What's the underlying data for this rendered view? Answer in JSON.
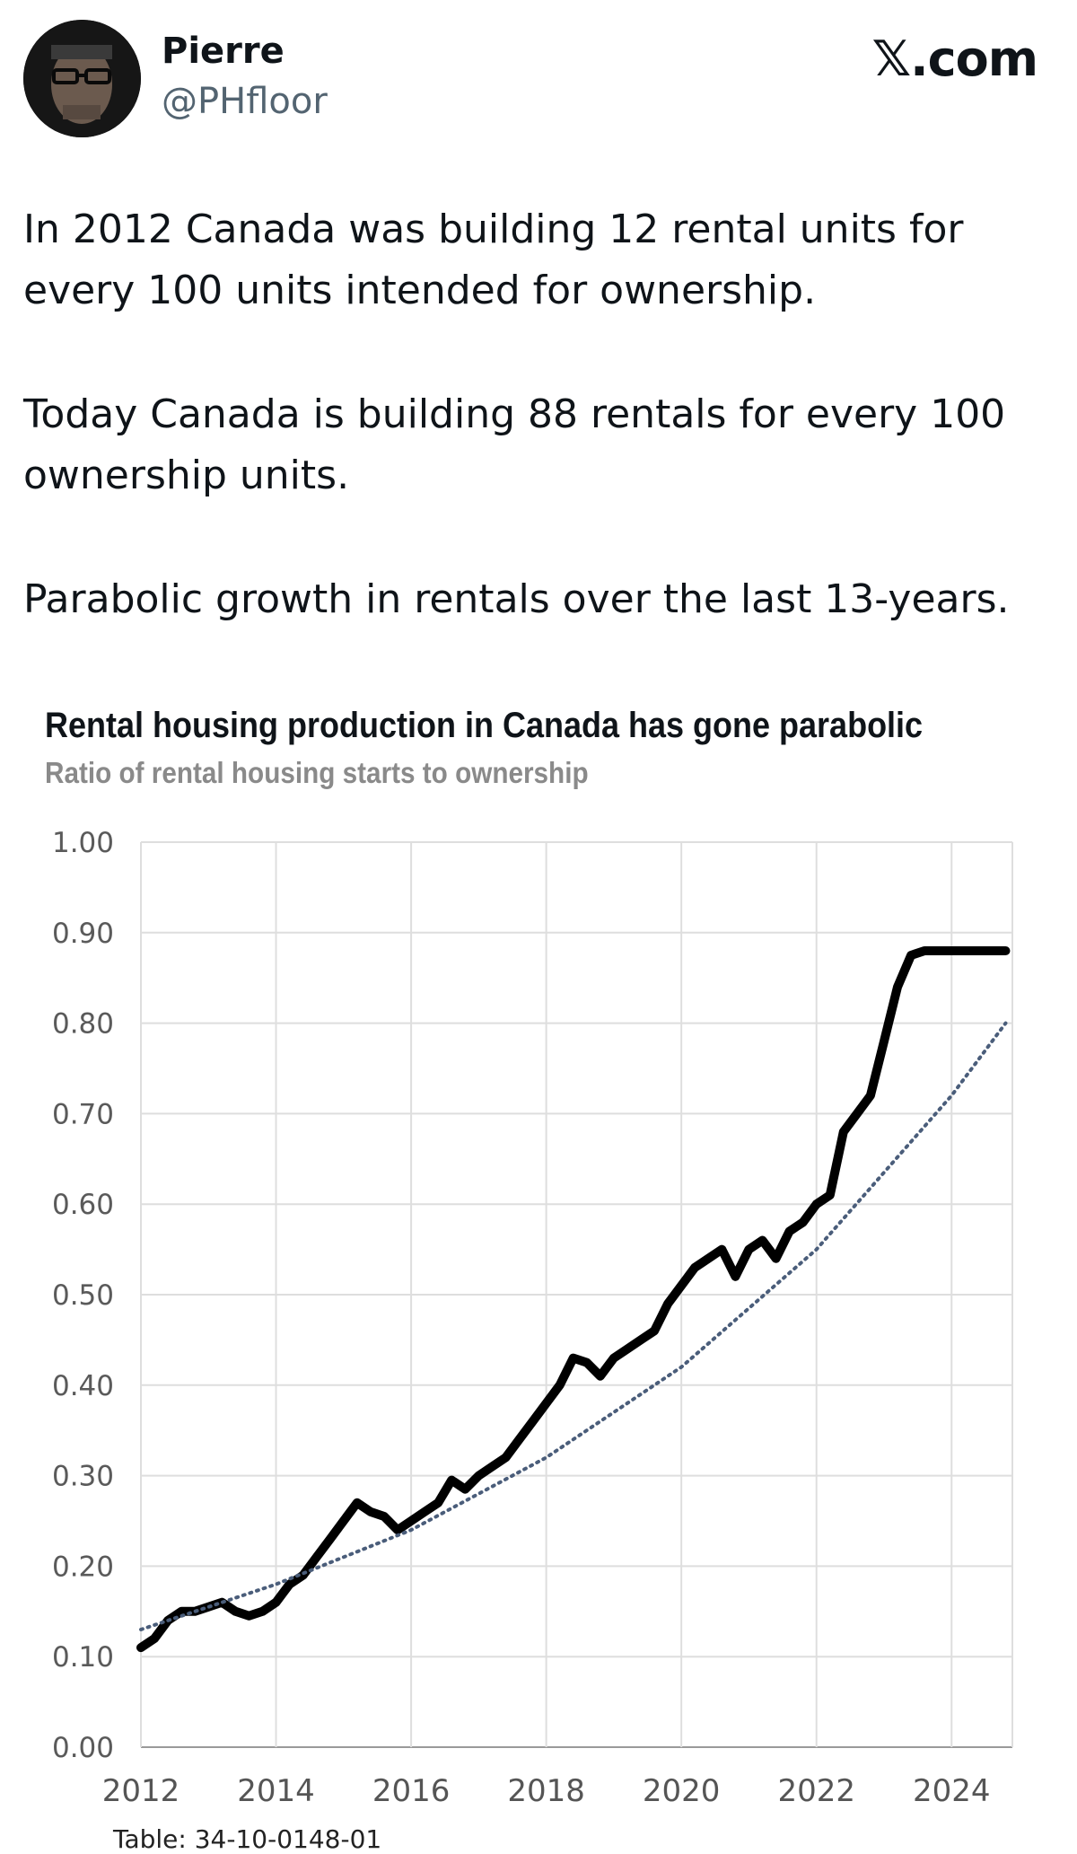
{
  "author": {
    "display_name": "Pierre",
    "handle": "@PHfloor",
    "avatar_icon": "profile-photo"
  },
  "site_label": "𝕏.com",
  "tweet": {
    "paragraphs": [
      "In 2012 Canada was building 12 rental units for\nevery 100 units intended for ownership.",
      "Today Canada is building 88 rentals for every 100\nownership units.",
      "Parabolic growth in rentals over the last 13-years."
    ]
  },
  "chart_data": {
    "type": "line",
    "title": "Rental housing production in Canada has gone parabolic",
    "subtitle": "Ratio of rental housing starts to ownership",
    "source": "Table: 34-10-0148-01",
    "xlim": [
      2012,
      2024.9
    ],
    "ylim": [
      0,
      1
    ],
    "x_ticks": [
      "2012",
      "2014",
      "2016",
      "2018",
      "2020",
      "2022",
      "2024"
    ],
    "y_ticks": [
      "0.00",
      "0.10",
      "0.20",
      "0.30",
      "0.40",
      "0.50",
      "0.60",
      "0.70",
      "0.80",
      "0.90",
      "1.00"
    ],
    "grid": true,
    "line_color": "#000000",
    "trend_color": "#4a5d7a",
    "series": [
      {
        "style": "solid",
        "x": [
          2012.0,
          2012.2,
          2012.4,
          2012.6,
          2012.8,
          2013.0,
          2013.2,
          2013.4,
          2013.6,
          2013.8,
          2014.0,
          2014.2,
          2014.4,
          2014.6,
          2014.8,
          2015.0,
          2015.2,
          2015.4,
          2015.6,
          2015.8,
          2016.0,
          2016.2,
          2016.4,
          2016.6,
          2016.8,
          2017.0,
          2017.2,
          2017.4,
          2017.6,
          2017.8,
          2018.0,
          2018.2,
          2018.4,
          2018.6,
          2018.8,
          2019.0,
          2019.2,
          2019.4,
          2019.6,
          2019.8,
          2020.0,
          2020.2,
          2020.4,
          2020.6,
          2020.8,
          2021.0,
          2021.2,
          2021.4,
          2021.6,
          2021.8,
          2022.0,
          2022.2,
          2022.4,
          2022.6,
          2022.8,
          2023.0,
          2023.2,
          2023.4,
          2023.6,
          2023.8,
          2024.0,
          2024.2,
          2024.4,
          2024.6,
          2024.8
        ],
        "values": [
          0.11,
          0.12,
          0.14,
          0.15,
          0.15,
          0.155,
          0.16,
          0.15,
          0.145,
          0.15,
          0.16,
          0.18,
          0.19,
          0.21,
          0.23,
          0.25,
          0.27,
          0.26,
          0.255,
          0.24,
          0.25,
          0.26,
          0.27,
          0.295,
          0.285,
          0.3,
          0.31,
          0.32,
          0.34,
          0.36,
          0.38,
          0.4,
          0.43,
          0.425,
          0.41,
          0.43,
          0.44,
          0.45,
          0.46,
          0.49,
          0.51,
          0.53,
          0.54,
          0.55,
          0.52,
          0.55,
          0.56,
          0.54,
          0.57,
          0.58,
          0.6,
          0.61,
          0.68,
          0.7,
          0.72,
          0.78,
          0.84,
          0.875,
          0.88,
          0.88,
          0.88,
          0.88,
          0.88,
          0.88,
          0.88
        ]
      },
      {
        "style": "dotted",
        "x": [
          2012,
          2014,
          2016,
          2018,
          2020,
          2022,
          2024,
          2024.8
        ],
        "values": [
          0.13,
          0.18,
          0.24,
          0.32,
          0.42,
          0.55,
          0.72,
          0.8
        ]
      }
    ]
  }
}
